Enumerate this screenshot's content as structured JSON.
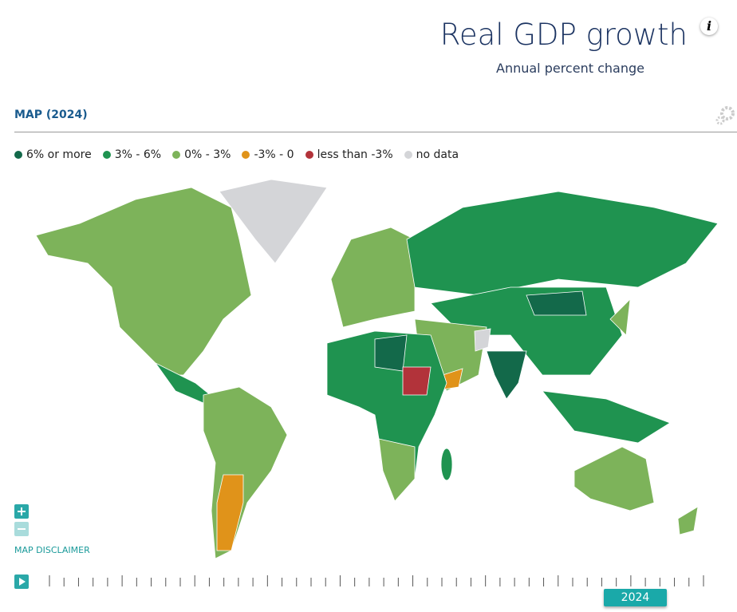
{
  "header": {
    "title": "Real GDP growth",
    "subtitle": "Annual percent change",
    "info": "i"
  },
  "map": {
    "label": "MAP (2024)",
    "legend": [
      {
        "label": "6% or more",
        "color": "#13694a"
      },
      {
        "label": "3% - 6%",
        "color": "#1f9350"
      },
      {
        "label": "0% - 3%",
        "color": "#7db35a"
      },
      {
        "label": "-3% - 0",
        "color": "#e0931a"
      },
      {
        "label": "less than -3%",
        "color": "#b2333a"
      },
      {
        "label": "no data",
        "color": "#d4d5d8"
      }
    ],
    "disclaimer": "MAP DISCLAIMER"
  },
  "timeline": {
    "year": "2024"
  }
}
